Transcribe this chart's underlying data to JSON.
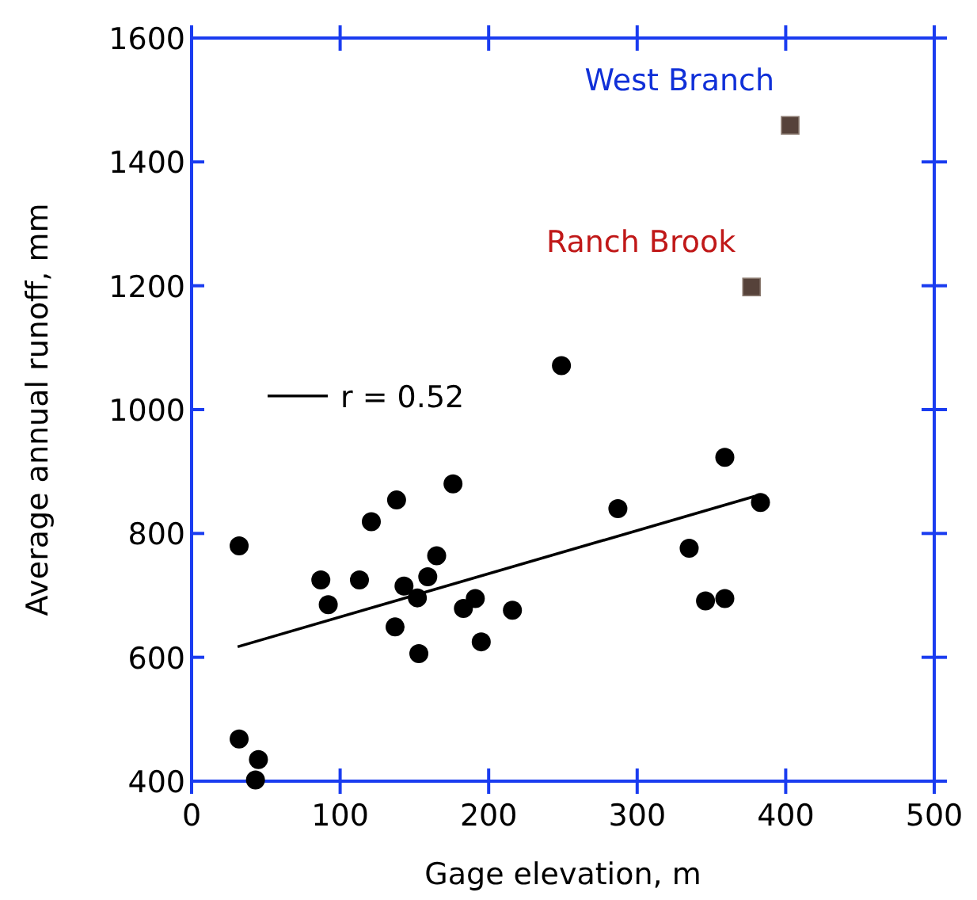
{
  "chart_data": {
    "type": "scatter",
    "xlabel": "Gage elevation, m",
    "ylabel": "Average annual runoff, mm",
    "xlim": [
      0,
      500
    ],
    "xticks": [
      0,
      100,
      200,
      300,
      400,
      500
    ],
    "ylim": [
      400,
      1600
    ],
    "yticks": [
      400,
      600,
      800,
      1000,
      1200,
      1400,
      1600
    ],
    "grid": false,
    "legend": "top left",
    "series": [
      {
        "color": "#000000",
        "marker": "circle",
        "x": [
          32,
          32,
          45,
          43,
          87,
          92,
          113,
          121,
          138,
          143,
          137,
          152,
          153,
          159,
          165,
          176,
          183,
          191,
          195,
          216,
          249,
          287,
          335,
          346,
          359,
          359,
          383
        ],
        "values": [
          780,
          468,
          435,
          402,
          725,
          685,
          725,
          819,
          854,
          715,
          649,
          696,
          606,
          730,
          764,
          880,
          679,
          695,
          625,
          676,
          1071,
          840,
          776,
          691,
          695,
          923,
          850
        ]
      },
      {
        "color": "#56423a",
        "marker": "square",
        "x": [
          403,
          377
        ],
        "values": [
          1459,
          1198
        ]
      },
      {
        "type": "line",
        "name": "r = 0.52",
        "color": "#000000",
        "marker": "none",
        "line_style": "solid",
        "x": [
          31,
          379
        ],
        "values": [
          617,
          860
        ]
      }
    ],
    "annotations": [
      {
        "text": "West Branch",
        "x": 403,
        "y": 1459
      },
      {
        "text": "Ranch Brook",
        "x": 377,
        "y": 1198
      }
    ]
  }
}
